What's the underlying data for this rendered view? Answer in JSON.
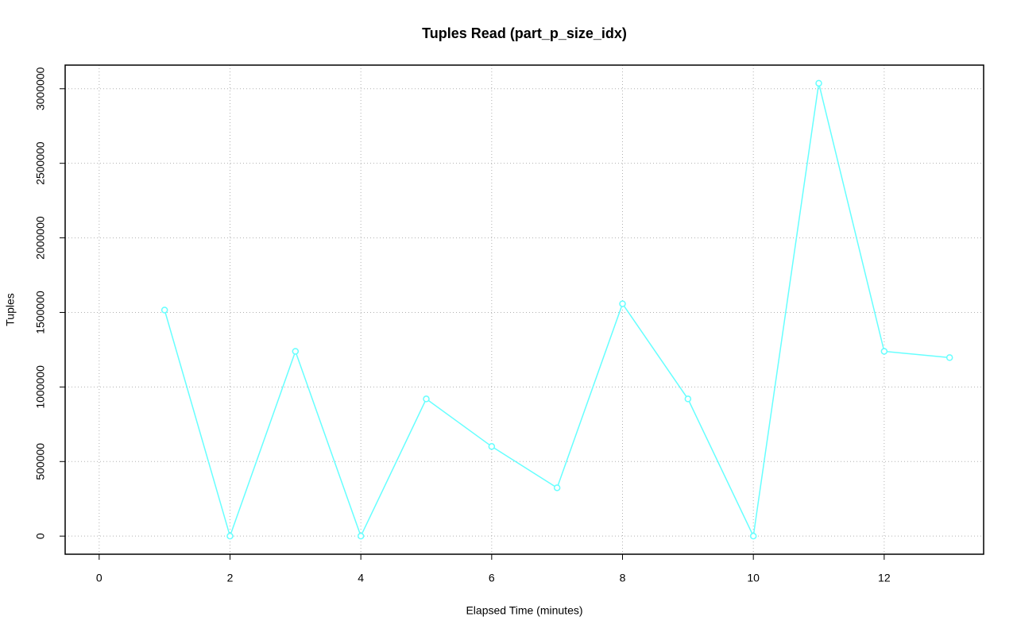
{
  "chart_data": {
    "type": "line",
    "title": "Tuples Read (part_p_size_idx)",
    "x_label": "Elapsed Time (minutes)",
    "y_label": "Tuples",
    "x": [
      1,
      2,
      3,
      4,
      5,
      6,
      7,
      8,
      9,
      10,
      11,
      12,
      13
    ],
    "series": [
      {
        "name": "Tuples",
        "color": "#66ffff",
        "values": [
          1516000,
          0,
          1239000,
          0,
          920000,
          601000,
          324000,
          1558000,
          920000,
          0,
          3037000,
          1239000,
          1197000
        ]
      }
    ],
    "xlim": [
      -0.52,
      13.52
    ],
    "xticks": [
      0,
      2,
      4,
      6,
      8,
      10,
      12
    ],
    "ylim": [
      -121500,
      3158500
    ],
    "yticks": [
      0,
      500000,
      1000000,
      1500000,
      2000000,
      2500000,
      3000000
    ],
    "grid": true
  }
}
